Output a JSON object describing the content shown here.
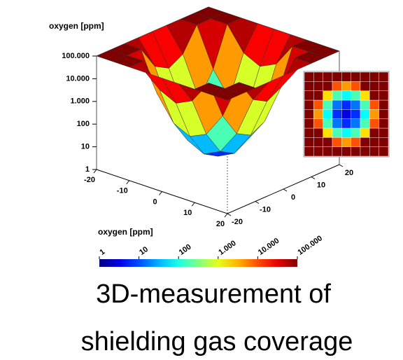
{
  "chart_data": {
    "type": "surface",
    "title": "oxygen [ppm]",
    "x": [
      -20,
      -15,
      -10,
      -5,
      0,
      5,
      10,
      15,
      20
    ],
    "y": [
      -20,
      -15,
      -10,
      -5,
      0,
      5,
      10,
      15,
      20
    ],
    "z": [
      [
        100000,
        100000,
        100000,
        100000,
        100000,
        100000,
        100000,
        100000,
        100000
      ],
      [
        100000,
        100000,
        100000,
        9400,
        4200,
        9400,
        100000,
        100000,
        100000
      ],
      [
        100000,
        100000,
        1900,
        170,
        78,
        170,
        1900,
        100000,
        100000
      ],
      [
        100000,
        9400,
        170,
        16,
        7,
        16,
        170,
        9400,
        100000
      ],
      [
        100000,
        4200,
        78,
        7,
        3,
        7,
        78,
        4200,
        100000
      ],
      [
        100000,
        9400,
        170,
        16,
        7,
        16,
        170,
        9400,
        100000
      ],
      [
        100000,
        100000,
        1900,
        170,
        78,
        170,
        1900,
        100000,
        100000
      ],
      [
        100000,
        100000,
        100000,
        9400,
        4200,
        9400,
        100000,
        100000,
        100000
      ],
      [
        100000,
        100000,
        100000,
        100000,
        100000,
        100000,
        100000,
        100000,
        100000
      ]
    ],
    "xlim": [
      -20,
      20
    ],
    "ylim": [
      -20,
      20
    ],
    "zlim": [
      1,
      100000
    ],
    "log_z": true,
    "xticks": [
      -20,
      -10,
      0,
      10,
      20
    ],
    "yticks": [
      -20,
      -10,
      0,
      10,
      20
    ],
    "zticks": [
      {
        "value": 1,
        "label": "1"
      },
      {
        "value": 10,
        "label": "10"
      },
      {
        "value": 100,
        "label": "100"
      },
      {
        "value": 1000,
        "label": "1.000"
      },
      {
        "value": 10000,
        "label": "10.000"
      },
      {
        "value": 100000,
        "label": "100.000"
      }
    ],
    "colorbar_label": "oxygen [ppm]"
  },
  "caption": [
    "3D-measurement of",
    "shielding gas coverage"
  ]
}
